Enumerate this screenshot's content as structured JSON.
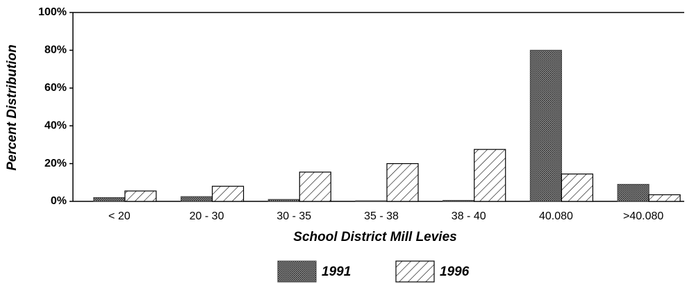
{
  "chart_data": {
    "type": "bar",
    "x_label": "School District Mill Levies",
    "y_label": "Percent Distribution",
    "categories": [
      "< 20",
      "20 - 30",
      "30 - 35",
      "35 - 38",
      "38 - 40",
      "40.080",
      ">40.080"
    ],
    "series": [
      {
        "name": "1991",
        "color": "#4a4a4a",
        "pattern": "stipple",
        "values": [
          2,
          2.5,
          1,
          0.3,
          0.5,
          80,
          9
        ]
      },
      {
        "name": "1996",
        "color": "#000000",
        "pattern": "hatch",
        "values": [
          5.5,
          8,
          15.5,
          20,
          27.5,
          14.5,
          3.5
        ]
      }
    ],
    "ylim": [
      0,
      100
    ],
    "yticks": [
      {
        "value": 0,
        "label": "0%"
      },
      {
        "value": 20,
        "label": "20%"
      },
      {
        "value": 40,
        "label": "40%"
      },
      {
        "value": 60,
        "label": "60%"
      },
      {
        "value": 80,
        "label": "80%"
      },
      {
        "value": 100,
        "label": "100%"
      }
    ],
    "legend": "bottom"
  }
}
